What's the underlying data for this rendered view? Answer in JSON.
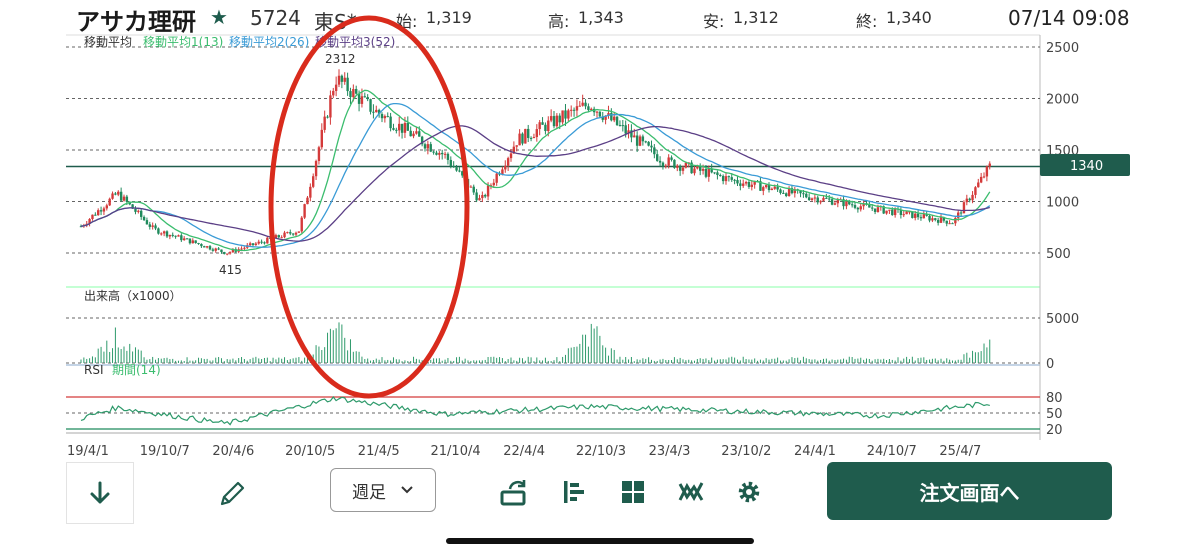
{
  "header": {
    "name": "アサカ理研",
    "code": "5724",
    "market": "東S*",
    "open_label": "始:",
    "open_value": "1,319",
    "high_label": "高:",
    "high_value": "1,343",
    "low_label": "安:",
    "low_value": "1,312",
    "close_label": "終:",
    "close_value": "1,340",
    "datetime": "07/14 09:08"
  },
  "legends": {
    "ma_title": "移動平均",
    "ma1": "移動平均1(13)",
    "ma2": "移動平均2(26)",
    "ma3": "移動平均3(52)",
    "volume": "出来高（x1000）",
    "rsi": "RSI",
    "rsi_period": "期間(14)"
  },
  "annotations": {
    "high_marker": "2312",
    "low_marker": "415",
    "current_price": "1340"
  },
  "colors": {
    "up": "#d43a3a",
    "down": "#1f8a5c",
    "ma1": "#3bbd6e",
    "ma2": "#3a9bd6",
    "ma3": "#5b3f86",
    "accent": "#1f5c4d",
    "circle": "#d92b1c"
  },
  "toolbar": {
    "period_select": "週足",
    "order_button": "注文画面へ",
    "icons": [
      "arrow-down-icon",
      "pencil-icon",
      "rotate-icon",
      "bar-chart-icon",
      "grid-icon",
      "indicator-icon",
      "gear-icon"
    ]
  },
  "chart_data": {
    "type": "candlestick",
    "price_axis_ticks": [
      500,
      1000,
      1500,
      2000,
      2500
    ],
    "current_price_line": 1340,
    "volume_axis_ticks": [
      0,
      5000
    ],
    "rsi_axis_ticks": [
      20,
      50,
      80
    ],
    "x_tick_labels": [
      "19/4/1",
      "19/10/7",
      "20/4/6",
      "20/10/5",
      "21/4/5",
      "21/10/4",
      "22/4/4",
      "22/10/3",
      "23/4/3",
      "23/10/2",
      "24/4/1",
      "24/10/7",
      "25/4/7"
    ],
    "close_keypoints": [
      {
        "x": "19/4/1",
        "y": 760
      },
      {
        "x": "19/7",
        "y": 1080
      },
      {
        "x": "19/10/7",
        "y": 730
      },
      {
        "x": "20/4/6",
        "y": 500
      },
      {
        "x": "20/10/5",
        "y": 720
      },
      {
        "x": "21/1",
        "y": 2200
      },
      {
        "x": "21/4/5",
        "y": 1900
      },
      {
        "x": "21/10/4",
        "y": 1450
      },
      {
        "x": "22/1",
        "y": 1000
      },
      {
        "x": "22/4/4",
        "y": 1600
      },
      {
        "x": "22/10/3",
        "y": 1950
      },
      {
        "x": "23/4/3",
        "y": 1400
      },
      {
        "x": "23/10/2",
        "y": 1200
      },
      {
        "x": "24/4/1",
        "y": 1050
      },
      {
        "x": "24/10/7",
        "y": 920
      },
      {
        "x": "25/4/7",
        "y": 800
      },
      {
        "x": "25/7",
        "y": 1340
      }
    ],
    "extremes": {
      "high": 2312,
      "low": 415
    },
    "volume_peaks_x1000": [
      {
        "x": "19/7",
        "y": 3800
      },
      {
        "x": "21/1",
        "y": 4800
      },
      {
        "x": "22/10/3",
        "y": 5000
      },
      {
        "x": "25/7",
        "y": 2800
      }
    ],
    "rsi_keypoints": [
      {
        "x": "19/4/1",
        "y": 40
      },
      {
        "x": "19/7",
        "y": 60
      },
      {
        "x": "20/4/6",
        "y": 30
      },
      {
        "x": "21/1",
        "y": 78
      },
      {
        "x": "21/10/4",
        "y": 48
      },
      {
        "x": "22/10/3",
        "y": 62
      },
      {
        "x": "24/10/7",
        "y": 45
      },
      {
        "x": "25/7",
        "y": 68
      }
    ]
  }
}
